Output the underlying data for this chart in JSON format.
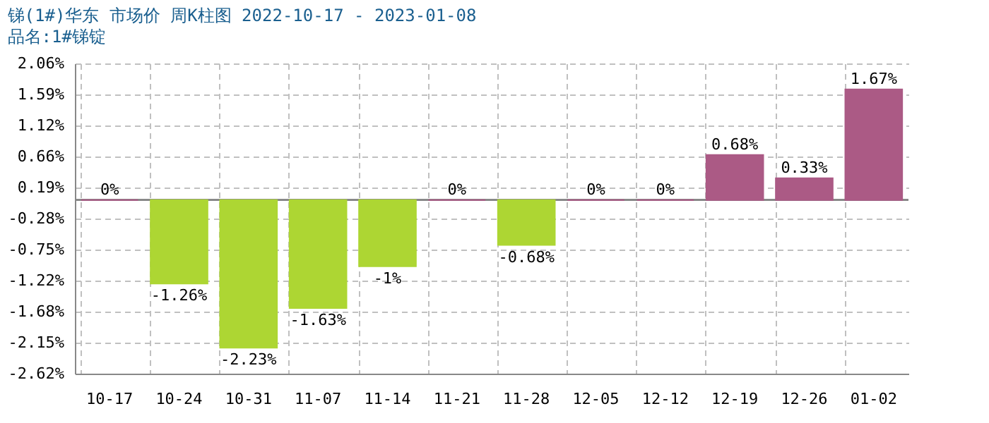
{
  "chart_data": {
    "type": "bar",
    "title": "锑(1#)华东 市场价 周K柱图 2022-10-17 - 2023-01-08",
    "subtitle": "品名:1#锑锭",
    "categories": [
      "10-17",
      "10-24",
      "10-31",
      "11-07",
      "11-14",
      "11-21",
      "11-28",
      "12-05",
      "12-12",
      "12-19",
      "12-26",
      "01-02"
    ],
    "values": [
      0,
      -1.26,
      -2.23,
      -1.63,
      -1,
      0,
      -0.68,
      0,
      0,
      0.68,
      0.33,
      1.67
    ],
    "colors": [
      "#ab5a85",
      "#add633",
      "#add633",
      "#add633",
      "#add633",
      "#ab5a85",
      "#add633",
      "#ab5a85",
      "#ab5a85",
      "#ab5a85",
      "#ab5a85",
      "#ab5a85"
    ],
    "value_labels": [
      "0%",
      "-1.26%",
      "-2.23%",
      "-1.63%",
      "-1%",
      "0%",
      "-0.68%",
      "0%",
      "0%",
      "0.68%",
      "0.33%",
      "1.67%"
    ],
    "ylim": [
      -2.62,
      2.06
    ],
    "yticks": [
      {
        "value": 2.06,
        "label": "2.06%"
      },
      {
        "value": 1.59,
        "label": "1.59%"
      },
      {
        "value": 1.12,
        "label": "1.12%"
      },
      {
        "value": 0.66,
        "label": "0.66%"
      },
      {
        "value": 0.19,
        "label": "0.19%"
      },
      {
        "value": -0.28,
        "label": "-0.28%"
      },
      {
        "value": -0.75,
        "label": "-0.75%"
      },
      {
        "value": -1.22,
        "label": "-1.22%"
      },
      {
        "value": -1.68,
        "label": "-1.68%"
      },
      {
        "value": -2.15,
        "label": "-2.15%"
      },
      {
        "value": -2.62,
        "label": "-2.62%"
      }
    ],
    "grid": true
  }
}
